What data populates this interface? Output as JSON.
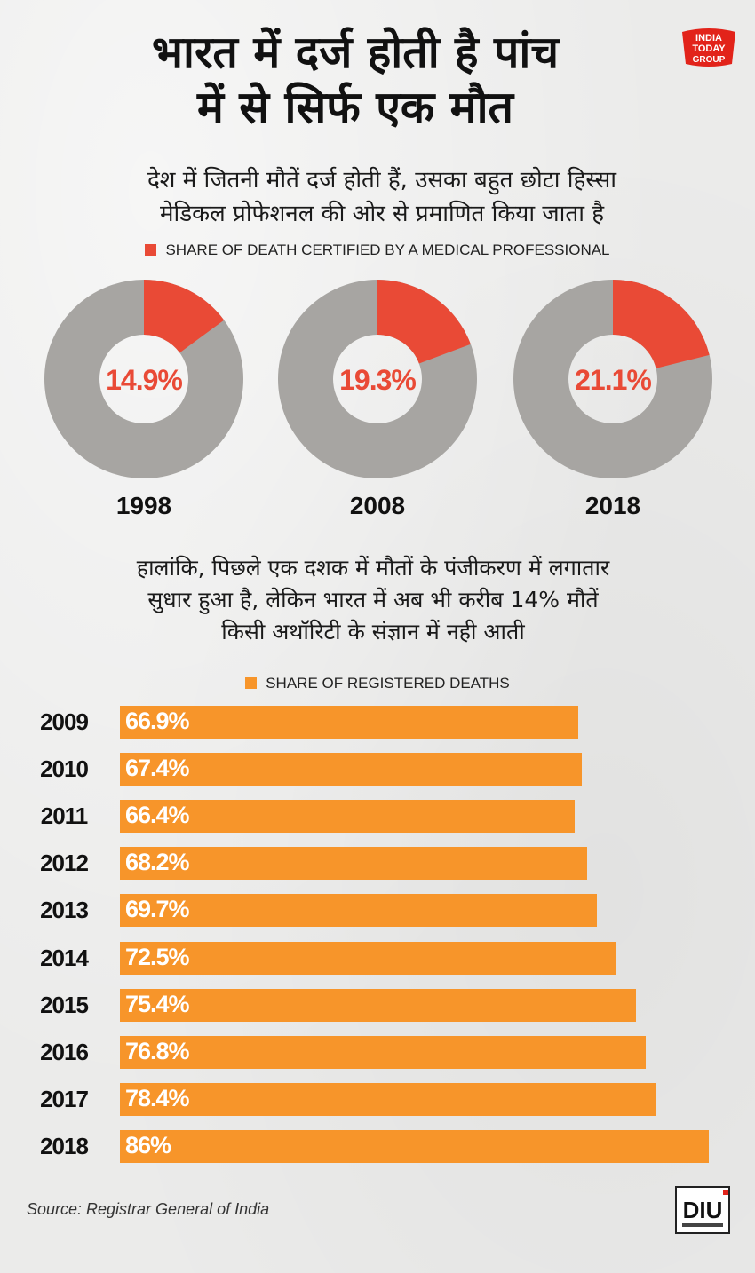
{
  "title": {
    "line1": "भारत में दर्ज होती है पांच",
    "line2": "में से सिर्फ एक मौत"
  },
  "subtitle": {
    "line1": "देश में जितनी मौतें दर्ज होती हैं, उसका बहुत छोटा हिस्सा",
    "line2": "मेडिकल प्रोफेशनल की ओर से प्रमाणित किया जाता है"
  },
  "logo": {
    "line1": "INDIA",
    "line2": "TODAY",
    "line3": "GROUP"
  },
  "mid_text": {
    "line1": "हालांकि, पिछले एक दशक में मौतों के पंजीकरण में लगातार",
    "line2": "सुधार हुआ है, लेकिन भारत में अब भी  करीब 14% मौतें",
    "line3": "किसी अथॉरिटी के संज्ञान में नही आती"
  },
  "source": "Source: Registrar General of India",
  "diu_logo": "DIU",
  "colors": {
    "certified": "#e94a36",
    "remaining": "#a7a5a2",
    "bar": "#f7952a"
  },
  "chart_data": [
    {
      "type": "pie",
      "variant": "donut",
      "legend": "SHARE OF DEATH CERTIFIED BY A MEDICAL PROFESSIONAL",
      "charts": [
        {
          "year": "1998",
          "value": 14.9,
          "label": "14.9%"
        },
        {
          "year": "2008",
          "value": 19.3,
          "label": "19.3%"
        },
        {
          "year": "2018",
          "value": 21.1,
          "label": "21.1%"
        }
      ]
    },
    {
      "type": "bar",
      "orientation": "horizontal",
      "legend": "SHARE OF REGISTERED DEATHS",
      "categories": [
        "2009",
        "2010",
        "2011",
        "2012",
        "2013",
        "2014",
        "2015",
        "2016",
        "2017",
        "2018"
      ],
      "values": [
        66.9,
        67.4,
        66.4,
        68.2,
        69.7,
        72.5,
        75.4,
        76.8,
        78.4,
        86
      ],
      "labels": [
        "66.9%",
        "67.4%",
        "66.4%",
        "68.2%",
        "69.7%",
        "72.5%",
        "75.4%",
        "76.8%",
        "78.4%",
        "86%"
      ],
      "xlim": [
        0,
        86
      ]
    }
  ]
}
